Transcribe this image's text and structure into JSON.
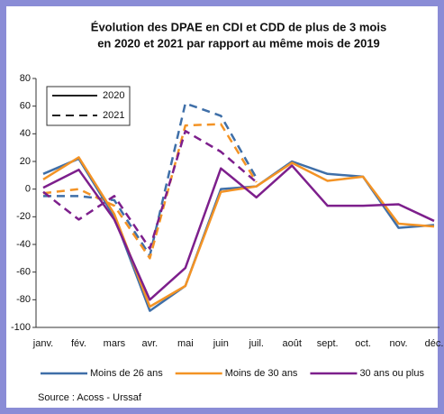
{
  "chart_data": {
    "type": "line",
    "title": [
      "Évolution des DPAE en CDI et CDD de plus de 3 mois",
      "en 2020 et 2021 par rapport au même mois de 2019"
    ],
    "categories": [
      "janv.",
      "fév.",
      "mars",
      "avr.",
      "mai",
      "juin",
      "juil.",
      "août",
      "sept.",
      "oct.",
      "nov.",
      "déc."
    ],
    "series": [
      {
        "name": "Moins de 26 ans",
        "color": "#3f6fa8",
        "values": [
          11,
          22,
          -20,
          -88,
          -70,
          0,
          2,
          20,
          11,
          9,
          -28,
          -26
        ],
        "values_2021": [
          -5,
          -5,
          -8,
          -48,
          62,
          53,
          8,
          null,
          null,
          null,
          null,
          null
        ]
      },
      {
        "name": "Moins de 30 ans",
        "color": "#f39325",
        "values": [
          7,
          23,
          -18,
          -85,
          -70,
          -2,
          2,
          19,
          6,
          9,
          -25,
          -27
        ],
        "values_2021": [
          -3,
          0,
          -12,
          -50,
          46,
          47,
          5,
          null,
          null,
          null,
          null,
          null
        ]
      },
      {
        "name": "30 ans ou plus",
        "color": "#7d1f8c",
        "values": [
          1,
          14,
          -22,
          -80,
          -57,
          15,
          -6,
          17,
          -12,
          -12,
          -11,
          -23
        ],
        "values_2021": [
          -2,
          -22,
          -5,
          -43,
          42,
          27,
          5,
          null,
          null,
          null,
          null,
          null
        ]
      }
    ],
    "line_styles": [
      {
        "label": "2020",
        "dashed": false
      },
      {
        "label": "2021",
        "dashed": true
      }
    ],
    "ylim": [
      -100,
      80
    ],
    "yticks": [
      -100,
      -80,
      -60,
      -40,
      -20,
      0,
      20,
      40,
      60,
      80
    ],
    "source": "Source : Acoss - Urssaf"
  }
}
